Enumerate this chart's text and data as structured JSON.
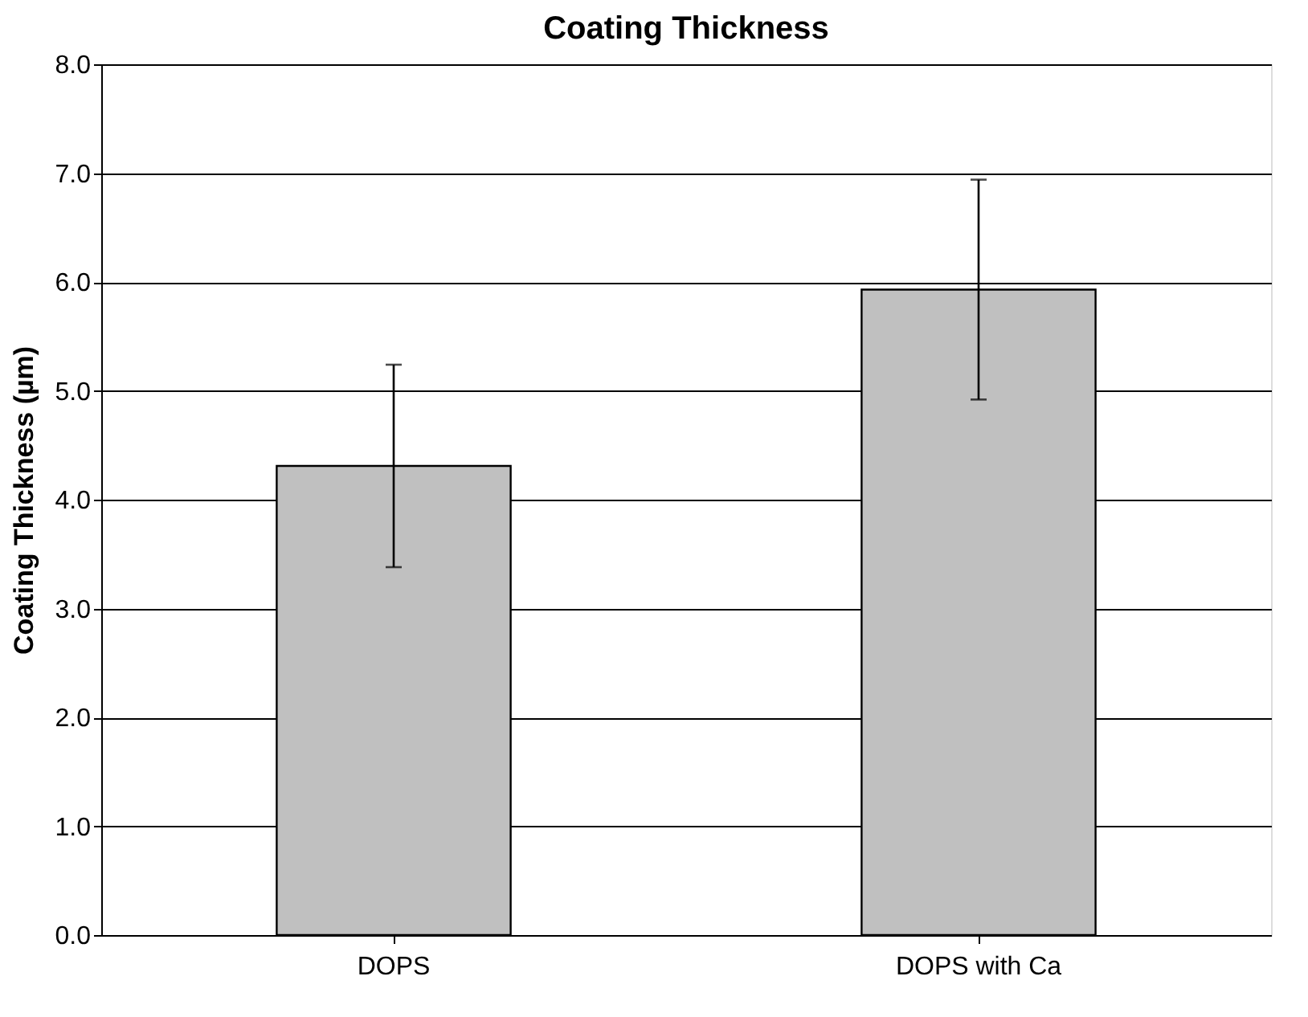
{
  "chart_data": {
    "type": "bar",
    "title": "Coating Thickness",
    "ylabel": "Coating Thickness (µm)",
    "categories": [
      "DOPS",
      "DOPS with Ca"
    ],
    "values": [
      4.31,
      5.93
    ],
    "errors": [
      0.93,
      1.01
    ],
    "color": "#c0c0c0",
    "ylim": [
      0,
      8
    ],
    "yticks": [
      {
        "value": 0,
        "label": "0.0"
      },
      {
        "value": 1,
        "label": "1.0"
      },
      {
        "value": 2,
        "label": "2.0"
      },
      {
        "value": 3,
        "label": "3.0"
      },
      {
        "value": 4,
        "label": "4.0"
      },
      {
        "value": 5,
        "label": "5.0"
      },
      {
        "value": 6,
        "label": "6.0"
      },
      {
        "value": 7,
        "label": "7.0"
      },
      {
        "value": 8,
        "label": "8.0"
      }
    ],
    "grid": "y"
  }
}
